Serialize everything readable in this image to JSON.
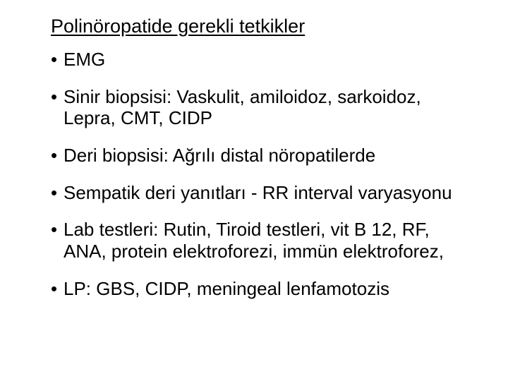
{
  "slide": {
    "title": "Polinöropatide gerekli tetkikler",
    "title_fontsize": 27,
    "title_underline": true,
    "bullets": [
      "EMG",
      "Sinir biopsisi: Vaskulit, amiloidoz, sarkoidoz, Lepra, CMT, CIDP",
      "Deri biopsisi: Ağrılı distal nöropatilerde",
      "Sempatik deri yanıtları - RR interval varyasyonu",
      "Lab testleri: Rutin, Tiroid testleri, vit B 12, RF, ANA, protein elektroforezi, immün elektroforez,",
      "LP: GBS, CIDP, meningeal lenfamotozis"
    ],
    "bullet_fontsize": 26,
    "bullet_marker": "•",
    "background_color": "#ffffff",
    "text_color": "#000000",
    "font_family": "Arial"
  }
}
